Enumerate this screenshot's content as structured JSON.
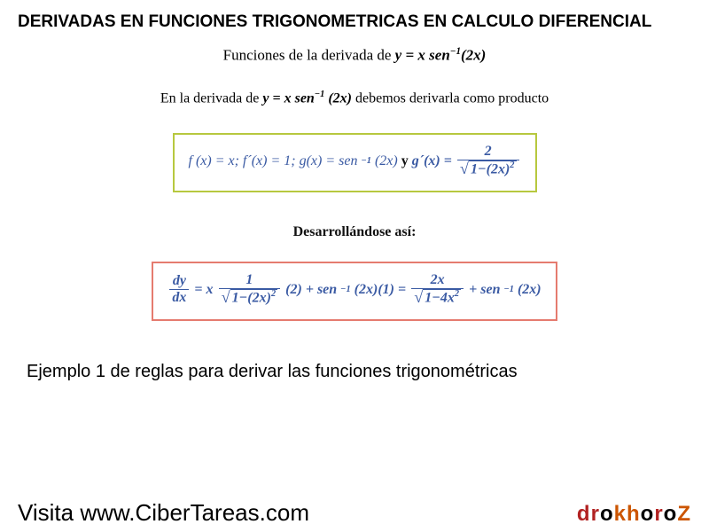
{
  "title": "DERIVADAS EN FUNCIONES TRIGONOMETRICAS EN CALCULO DIFERENCIAL",
  "subtitle_prefix": "Funciones de la derivada de ",
  "subtitle_math_y": "y",
  "subtitle_math_eq": " = ",
  "subtitle_math_x": "x sen",
  "subtitle_math_sup": "−1",
  "subtitle_math_arg": "(2x)",
  "intro_prefix": "En la derivada de ",
  "intro_math_y": "y",
  "intro_math_eq": "  =  ",
  "intro_math_x": "x sen",
  "intro_math_sup": "−1",
  "intro_math_arg": " (2x)",
  "intro_suffix": " debemos derivarla como producto",
  "box1": {
    "border_color": "#b7c83f",
    "text_color": "#3a5aa3",
    "f_lhs": "f (x) = x; f´(x) = 1; g(x) = sen",
    "f_sup": "−1",
    "f_mid": "(2x)",
    "y_txt": " y ",
    "g_lhs": "g´(x) = ",
    "frac_num": "2",
    "frac_den_pre": "1−(2x)",
    "frac_den_sup": "2"
  },
  "dev_label": "Desarrollándose así:",
  "box2": {
    "border_color": "#e57b6f",
    "text_color": "#3a5aa3",
    "lhs_num": "dy",
    "lhs_den": "dx",
    "eq": " = ",
    "x": "x",
    "frac1_num": "1",
    "frac1_den_pre": "1−(2x)",
    "frac1_den_sup": "2",
    "two": " (2) + ",
    "sen": "sen",
    "sup": "−1",
    "senarg": "(2x)(1) = ",
    "frac2_num": "2x",
    "frac2_den_pre": "1−4x",
    "frac2_den_sup": "2",
    "plus": " + ",
    "sen2": "sen",
    "sup2": "−1",
    "senarg2": "(2x)"
  },
  "example_line": "Ejemplo 1 de reglas para derivar las funciones trigonométricas",
  "footer": {
    "visit": "Visita ",
    "url": "www.CiberTareas.com",
    "brand": "drokhoroZ",
    "brand_colors": [
      "#b22222",
      "#b22222",
      "#000000",
      "#cc5500",
      "#cc5500",
      "#000000",
      "#b22222",
      "#000000",
      "#cc5500"
    ]
  },
  "colors": {
    "title": "#000000",
    "math_bold": "#111111",
    "formula_text": "#3a5aa3"
  }
}
